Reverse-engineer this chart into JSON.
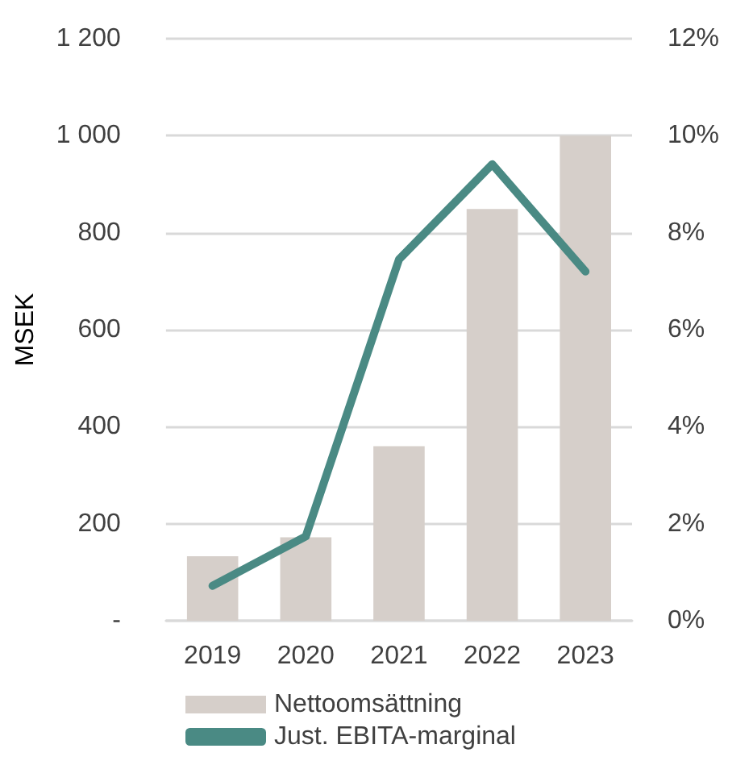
{
  "chart_data": {
    "type": "bar",
    "ylabel": "MSEK",
    "categories": [
      "2019",
      "2020",
      "2021",
      "2022",
      "2023"
    ],
    "series": [
      {
        "name": "Nettoomsättning",
        "color": "#d6cfca",
        "values": [
          133,
          172,
          360,
          849,
          1000
        ]
      },
      {
        "name": "Just. EBITA-marginal",
        "type": "line",
        "axis": "y2",
        "color": "#4a8a84",
        "values": [
          0.72,
          1.74,
          7.45,
          9.41,
          7.2
        ]
      }
    ],
    "ylim": [
      0,
      1200
    ],
    "yticks": [
      {
        "value": 0,
        "label": "-"
      },
      {
        "value": 200,
        "label": "200"
      },
      {
        "value": 400,
        "label": "400"
      },
      {
        "value": 600,
        "label": "600"
      },
      {
        "value": 800,
        "label": "800"
      },
      {
        "value": 1000,
        "label": "1 000"
      },
      {
        "value": 1200,
        "label": "1 200"
      }
    ],
    "y2lim": [
      0,
      12
    ],
    "y2ticks": [
      {
        "value": 0,
        "label": "0%"
      },
      {
        "value": 2,
        "label": "2%"
      },
      {
        "value": 4,
        "label": "4%"
      },
      {
        "value": 6,
        "label": "6%"
      },
      {
        "value": 8,
        "label": "8%"
      },
      {
        "value": 10,
        "label": "10%"
      },
      {
        "value": 12,
        "label": "12%"
      }
    ],
    "grid": "y",
    "legend": "bottom",
    "marker": "none",
    "line_style": "solid"
  }
}
